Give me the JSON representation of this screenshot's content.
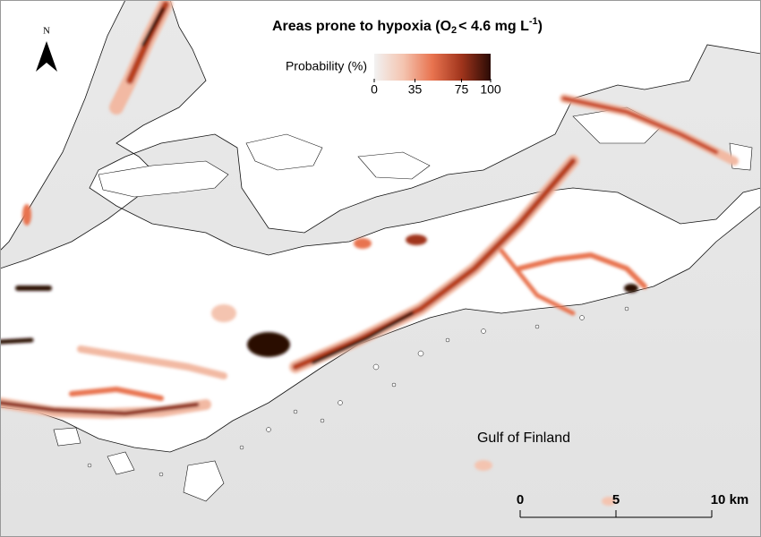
{
  "title": {
    "parts": [
      "Areas prone to hypoxia (O",
      "2",
      "< 4.6 mg L",
      "-1",
      ")"
    ]
  },
  "north_arrow": {
    "label": "N"
  },
  "legend": {
    "title": "Probability (%)",
    "colors": [
      "#f2f2f2",
      "#f4c4b0",
      "#e8734f",
      "#a0341c",
      "#2a0b05"
    ],
    "range": [
      0,
      100
    ],
    "ticks": [
      0,
      35,
      75,
      100
    ]
  },
  "place_label": "Gulf of Finland",
  "scale_bar": {
    "range": [
      0,
      10
    ],
    "ticks": [
      0,
      5,
      {
        "value": 10,
        "label": "10 km"
      }
    ]
  }
}
